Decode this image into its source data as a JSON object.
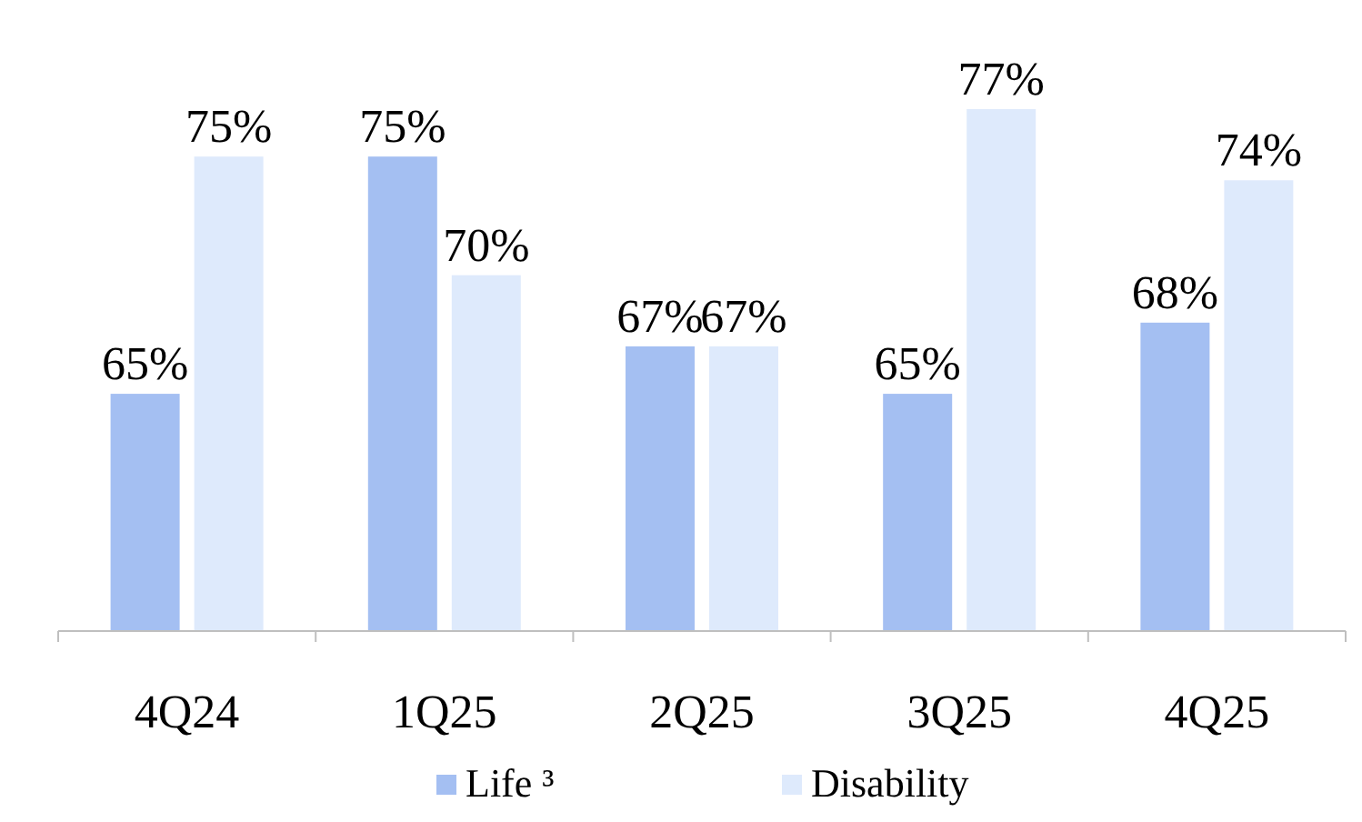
{
  "chart_data": {
    "type": "bar",
    "categories": [
      "4Q24",
      "1Q25",
      "2Q25",
      "3Q25",
      "4Q25"
    ],
    "series": [
      {
        "name": "Life ³",
        "color": "#a4bff2",
        "values": [
          65,
          75,
          67,
          65,
          68
        ],
        "value_labels": [
          "65%",
          "75%",
          "67%",
          "65%",
          "68%"
        ]
      },
      {
        "name": "Disability",
        "color": "#deeafc",
        "values": [
          75,
          70,
          67,
          77,
          74
        ],
        "value_labels": [
          "75%",
          "70%",
          "67%",
          "77%",
          "74%"
        ]
      }
    ],
    "ylim": [
      55,
      77
    ],
    "legend": "bottom"
  }
}
